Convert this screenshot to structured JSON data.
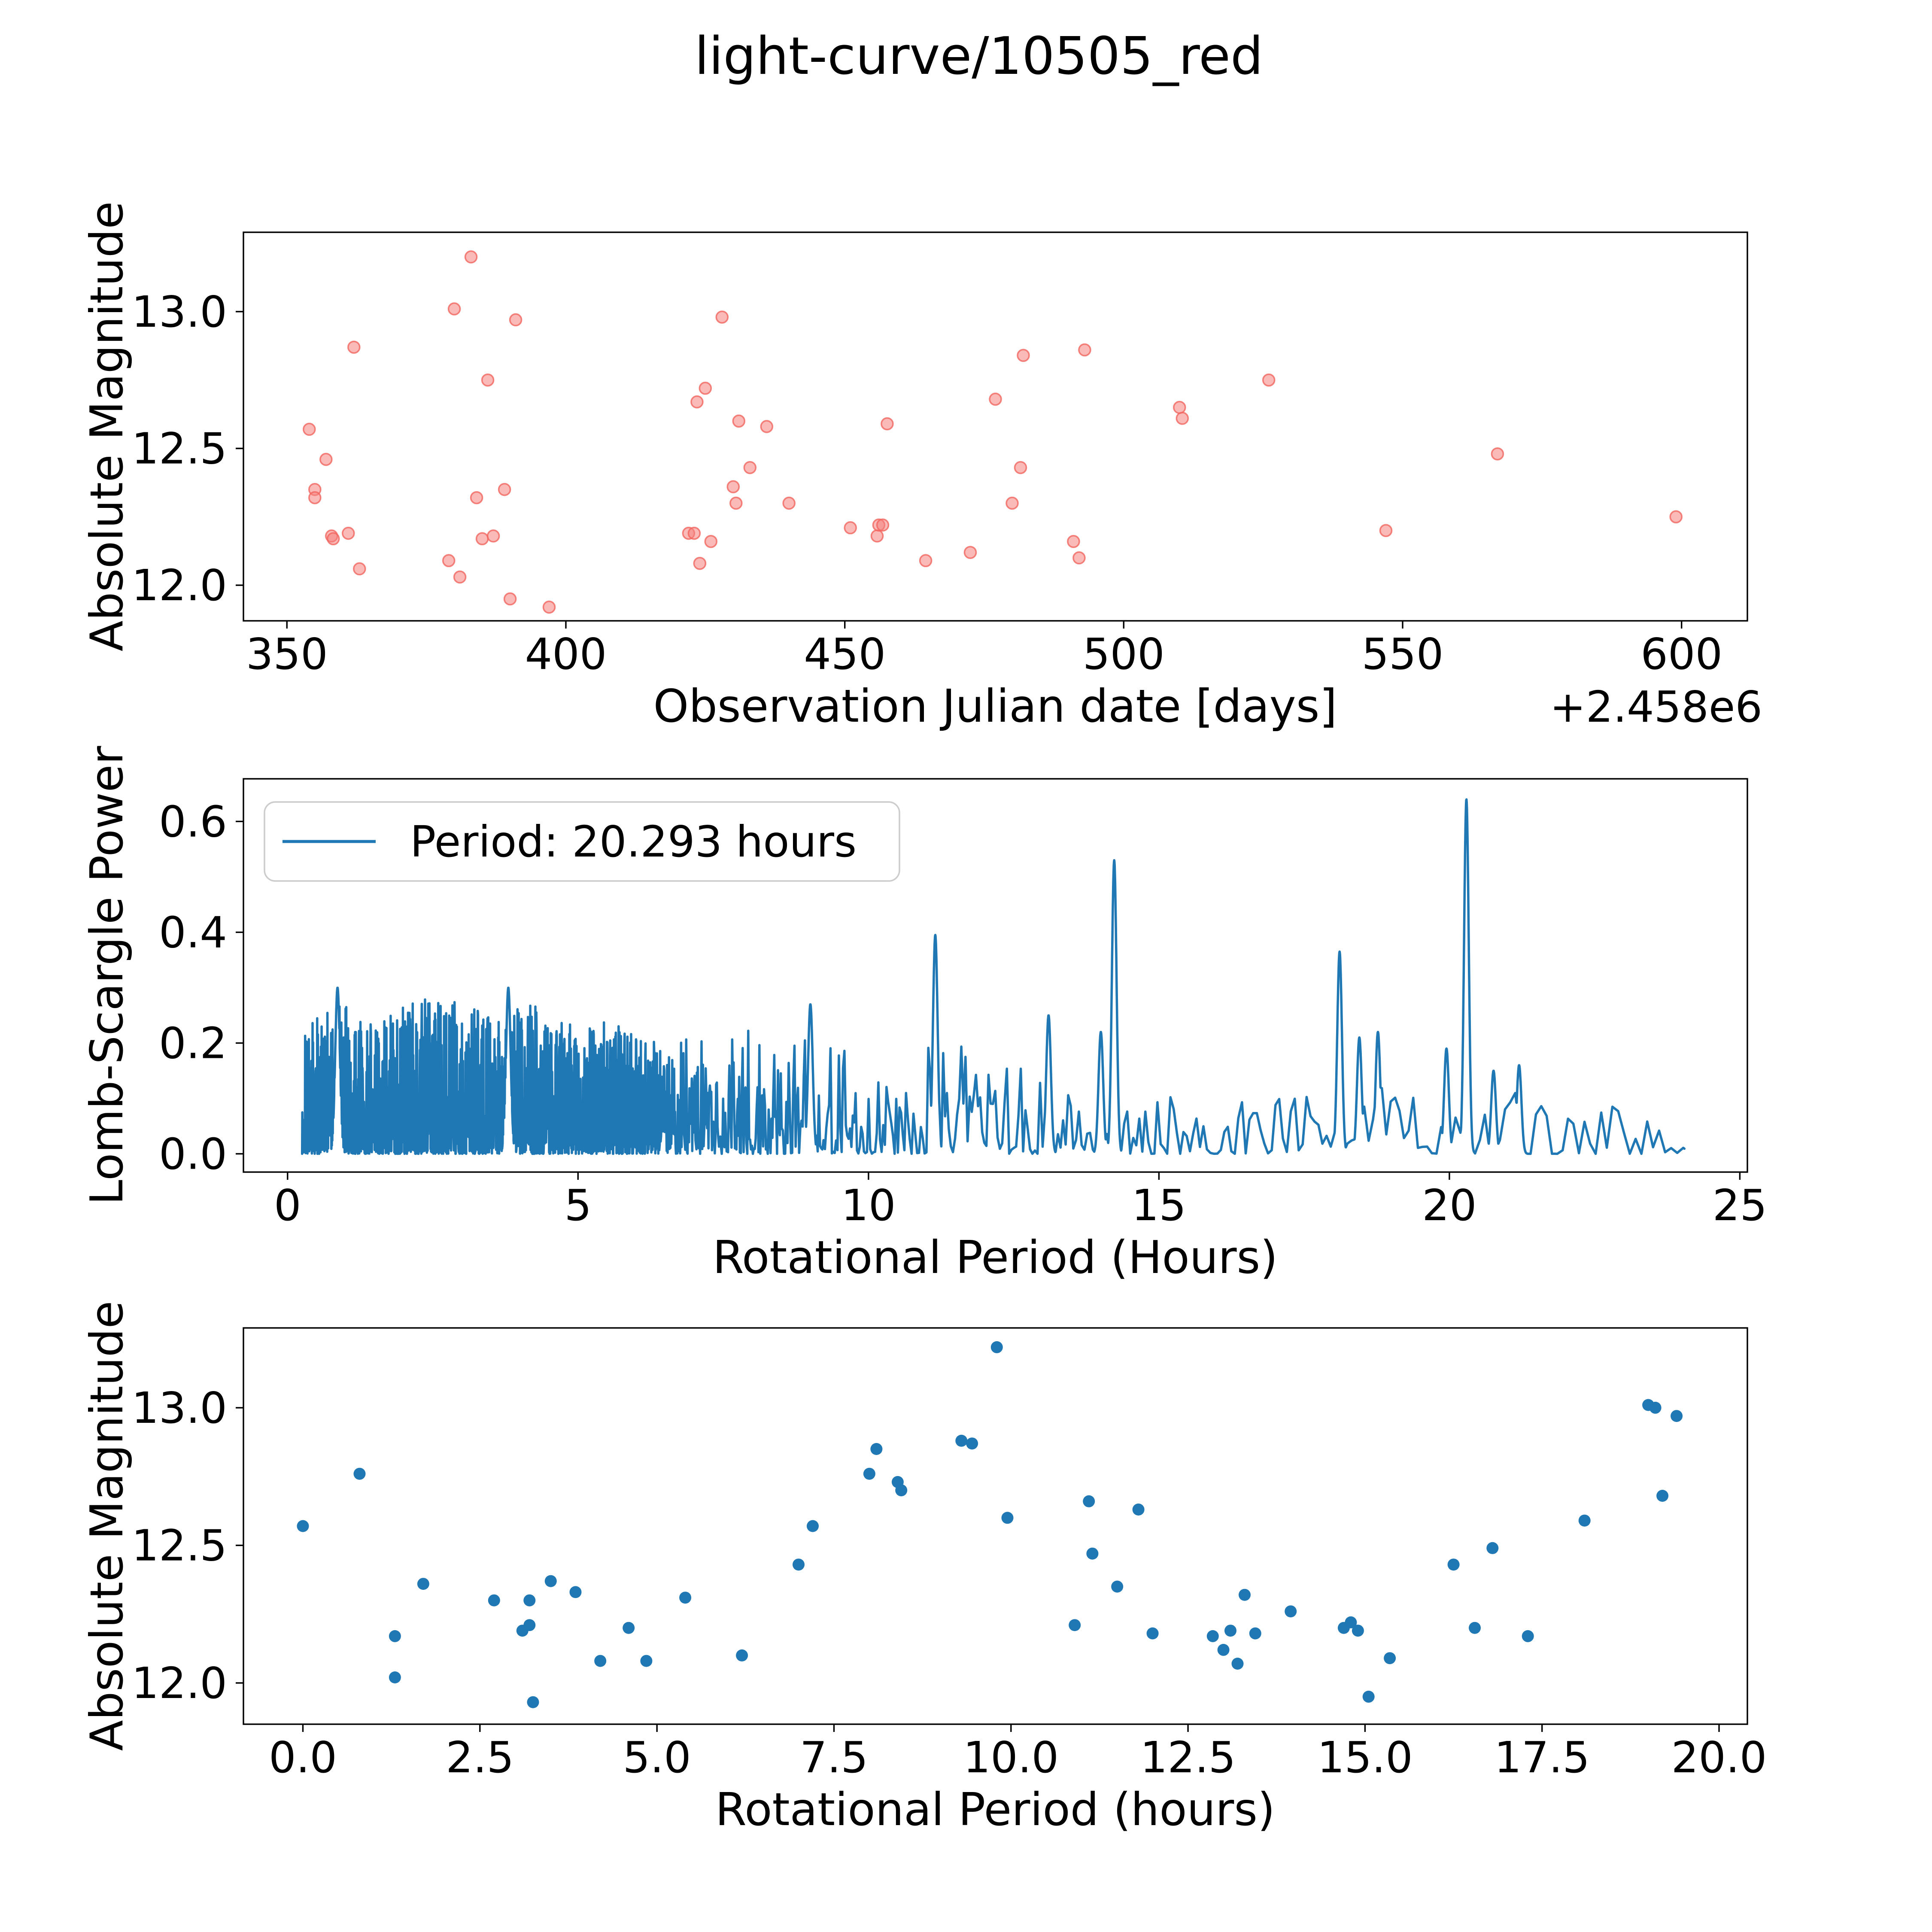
{
  "figure": {
    "title": "light-curve/10505_red",
    "background_color": "#ffffff",
    "text_color": "#000000"
  },
  "colors": {
    "top_scatter_fill": "#f4827d",
    "top_scatter_edge": "#f2655f",
    "series_blue": "#1f77b4",
    "spine": "#000000",
    "legend_border": "#cccccc"
  },
  "chart_data": [
    {
      "id": "jd-magnitude-scatter",
      "type": "scatter",
      "xlabel": "Observation Julian date [days]",
      "x_offset_label": "+2.458e6",
      "ylabel": "Absolute Magnitude",
      "grid": false,
      "xlim": [
        342.2,
        611.8
      ],
      "ylim": [
        11.87,
        13.29
      ],
      "xticks": [
        350,
        400,
        450,
        500,
        550,
        600
      ],
      "xtick_labels": [
        "350",
        "400",
        "450",
        "500",
        "550",
        "600"
      ],
      "yticks": [
        12.0,
        12.5,
        13.0
      ],
      "ytick_labels": [
        "12.0",
        "12.5",
        "13.0"
      ],
      "points": [
        [
          354,
          12.57
        ],
        [
          355,
          12.35
        ],
        [
          355,
          12.32
        ],
        [
          357,
          12.46
        ],
        [
          358,
          12.18
        ],
        [
          358.3,
          12.17
        ],
        [
          361,
          12.19
        ],
        [
          362,
          12.87
        ],
        [
          363,
          12.06
        ],
        [
          379,
          12.09
        ],
        [
          380,
          13.01
        ],
        [
          381,
          12.03
        ],
        [
          383,
          13.2
        ],
        [
          384,
          12.32
        ],
        [
          385,
          12.17
        ],
        [
          386,
          12.75
        ],
        [
          387,
          12.18
        ],
        [
          389,
          12.35
        ],
        [
          390,
          11.95
        ],
        [
          391,
          12.97
        ],
        [
          397,
          11.92
        ],
        [
          422,
          12.19
        ],
        [
          423,
          12.19
        ],
        [
          423.5,
          12.67
        ],
        [
          424,
          12.08
        ],
        [
          425,
          12.72
        ],
        [
          426,
          12.16
        ],
        [
          428,
          12.98
        ],
        [
          430,
          12.36
        ],
        [
          430.5,
          12.3
        ],
        [
          431,
          12.6
        ],
        [
          433,
          12.43
        ],
        [
          436,
          12.58
        ],
        [
          440,
          12.3
        ],
        [
          451,
          12.21
        ],
        [
          455.8,
          12.18
        ],
        [
          456.1,
          12.22
        ],
        [
          456.8,
          12.22
        ],
        [
          457.6,
          12.59
        ],
        [
          464.5,
          12.09
        ],
        [
          472.5,
          12.12
        ],
        [
          477,
          12.68
        ],
        [
          480,
          12.3
        ],
        [
          481.5,
          12.43
        ],
        [
          482,
          12.84
        ],
        [
          491,
          12.16
        ],
        [
          492,
          12.1
        ],
        [
          493,
          12.86
        ],
        [
          510,
          12.65
        ],
        [
          510.5,
          12.61
        ],
        [
          526,
          12.75
        ],
        [
          547,
          12.2
        ],
        [
          567,
          12.48
        ],
        [
          599,
          12.25
        ]
      ]
    },
    {
      "id": "lomb-scargle-periodogram",
      "type": "line",
      "xlabel": "Rotational Period (Hours)",
      "ylabel": "Lomb-Scargle Power",
      "legend_label": "Period: 20.293 hours",
      "legend_position": "upper left",
      "best_period_hours": 20.293,
      "grid": false,
      "xlim": [
        -0.76,
        25.13
      ],
      "ylim": [
        -0.033,
        0.677
      ],
      "xticks": [
        0,
        5,
        10,
        15,
        20,
        25
      ],
      "xtick_labels": [
        "0",
        "5",
        "10",
        "15",
        "20",
        "25"
      ],
      "yticks": [
        0.0,
        0.2,
        0.4,
        0.6
      ],
      "ytick_labels": [
        "0.0",
        "0.2",
        "0.4",
        "0.6"
      ],
      "data_range": [
        0.25,
        24.05
      ],
      "main_peaks": [
        {
          "period": 0.86,
          "power": 0.3
        },
        {
          "period": 3.8,
          "power": 0.3
        },
        {
          "period": 9.0,
          "power": 0.27
        },
        {
          "period": 11.15,
          "power": 0.395
        },
        {
          "period": 13.1,
          "power": 0.25
        },
        {
          "period": 14.0,
          "power": 0.22
        },
        {
          "period": 14.23,
          "power": 0.53
        },
        {
          "period": 18.11,
          "power": 0.365
        },
        {
          "period": 18.45,
          "power": 0.21
        },
        {
          "period": 18.77,
          "power": 0.22
        },
        {
          "period": 19.95,
          "power": 0.19
        },
        {
          "period": 20.293,
          "power": 0.64
        },
        {
          "period": 20.76,
          "power": 0.15
        },
        {
          "period": 21.2,
          "power": 0.16
        }
      ],
      "noise_envelope": [
        [
          0.15,
          0.2
        ],
        [
          0.4,
          0.26
        ],
        [
          0.7,
          0.27
        ],
        [
          0.9,
          0.28
        ],
        [
          1.2,
          0.24
        ],
        [
          1.5,
          0.24
        ],
        [
          1.8,
          0.26
        ],
        [
          2.1,
          0.28
        ],
        [
          2.4,
          0.28
        ],
        [
          2.7,
          0.28
        ],
        [
          3.0,
          0.27
        ],
        [
          3.3,
          0.26
        ],
        [
          3.6,
          0.27
        ],
        [
          3.9,
          0.28
        ],
        [
          4.2,
          0.27
        ],
        [
          4.5,
          0.25
        ],
        [
          4.8,
          0.24
        ],
        [
          5.1,
          0.22
        ],
        [
          5.4,
          0.24
        ],
        [
          5.7,
          0.24
        ],
        [
          6.0,
          0.21
        ],
        [
          6.4,
          0.2
        ],
        [
          6.8,
          0.21
        ],
        [
          7.2,
          0.22
        ],
        [
          7.6,
          0.25
        ],
        [
          8.0,
          0.22
        ],
        [
          8.4,
          0.22
        ],
        [
          8.8,
          0.24
        ],
        [
          9.2,
          0.2
        ],
        [
          9.6,
          0.2
        ],
        [
          10.0,
          0.22
        ],
        [
          10.4,
          0.22
        ],
        [
          10.8,
          0.2
        ],
        [
          11.2,
          0.22
        ],
        [
          11.6,
          0.2
        ],
        [
          12.0,
          0.17
        ],
        [
          12.4,
          0.16
        ],
        [
          12.8,
          0.16
        ],
        [
          13.2,
          0.16
        ],
        [
          13.6,
          0.14
        ],
        [
          14.0,
          0.18
        ],
        [
          14.4,
          0.15
        ],
        [
          14.8,
          0.14
        ],
        [
          15.2,
          0.12
        ],
        [
          15.6,
          0.1
        ],
        [
          16.0,
          0.1
        ],
        [
          16.4,
          0.11
        ],
        [
          16.8,
          0.12
        ],
        [
          17.2,
          0.12
        ],
        [
          17.6,
          0.13
        ],
        [
          18.0,
          0.15
        ],
        [
          18.4,
          0.16
        ],
        [
          18.8,
          0.16
        ],
        [
          19.2,
          0.12
        ],
        [
          19.6,
          0.11
        ],
        [
          20.0,
          0.13
        ],
        [
          20.4,
          0.12
        ],
        [
          20.8,
          0.13
        ],
        [
          21.2,
          0.13
        ],
        [
          21.6,
          0.09
        ],
        [
          22.0,
          0.075
        ],
        [
          22.4,
          0.08
        ],
        [
          22.8,
          0.09
        ],
        [
          23.2,
          0.06
        ],
        [
          23.6,
          0.055
        ],
        [
          24.0,
          0.035
        ]
      ]
    },
    {
      "id": "phase-folded-scatter",
      "type": "scatter",
      "xlabel": "Rotational Period (hours)",
      "ylabel": "Absolute Magnitude",
      "grid": false,
      "xlim": [
        -0.84,
        20.4
      ],
      "ylim": [
        11.85,
        13.29
      ],
      "xticks": [
        0,
        2.5,
        5,
        7.5,
        10,
        12.5,
        15,
        17.5,
        20
      ],
      "xtick_labels": [
        "0.0",
        "2.5",
        "5.0",
        "7.5",
        "10.0",
        "12.5",
        "15.0",
        "17.5",
        "20.0"
      ],
      "yticks": [
        12.0,
        12.5,
        13.0
      ],
      "ytick_labels": [
        "12.0",
        "12.5",
        "13.0"
      ],
      "points": [
        [
          0.0,
          12.57
        ],
        [
          0.8,
          12.76
        ],
        [
          1.3,
          12.17
        ],
        [
          1.3,
          12.02
        ],
        [
          1.7,
          12.36
        ],
        [
          2.7,
          12.3
        ],
        [
          3.1,
          12.19
        ],
        [
          3.2,
          12.21
        ],
        [
          3.2,
          12.3
        ],
        [
          3.25,
          11.93
        ],
        [
          3.5,
          12.37
        ],
        [
          3.85,
          12.33
        ],
        [
          4.2,
          12.08
        ],
        [
          4.6,
          12.2
        ],
        [
          4.85,
          12.08
        ],
        [
          5.4,
          12.31
        ],
        [
          6.2,
          12.1
        ],
        [
          7.0,
          12.43
        ],
        [
          7.2,
          12.57
        ],
        [
          8.0,
          12.76
        ],
        [
          8.1,
          12.85
        ],
        [
          8.4,
          12.73
        ],
        [
          8.45,
          12.7
        ],
        [
          9.3,
          12.88
        ],
        [
          9.45,
          12.87
        ],
        [
          9.8,
          13.22
        ],
        [
          9.95,
          12.6
        ],
        [
          10.9,
          12.21
        ],
        [
          11.1,
          12.66
        ],
        [
          11.15,
          12.47
        ],
        [
          11.5,
          12.35
        ],
        [
          11.8,
          12.63
        ],
        [
          12.0,
          12.18
        ],
        [
          12.85,
          12.17
        ],
        [
          13.0,
          12.12
        ],
        [
          13.1,
          12.19
        ],
        [
          13.2,
          12.07
        ],
        [
          13.3,
          12.32
        ],
        [
          13.45,
          12.18
        ],
        [
          13.95,
          12.26
        ],
        [
          14.7,
          12.2
        ],
        [
          14.8,
          12.22
        ],
        [
          14.9,
          12.19
        ],
        [
          15.05,
          11.95
        ],
        [
          15.35,
          12.09
        ],
        [
          16.25,
          12.43
        ],
        [
          16.55,
          12.2
        ],
        [
          16.8,
          12.49
        ],
        [
          17.3,
          12.17
        ],
        [
          18.1,
          12.59
        ],
        [
          19.0,
          13.01
        ],
        [
          19.1,
          13.0
        ],
        [
          19.2,
          12.68
        ],
        [
          19.4,
          12.97
        ]
      ]
    }
  ]
}
